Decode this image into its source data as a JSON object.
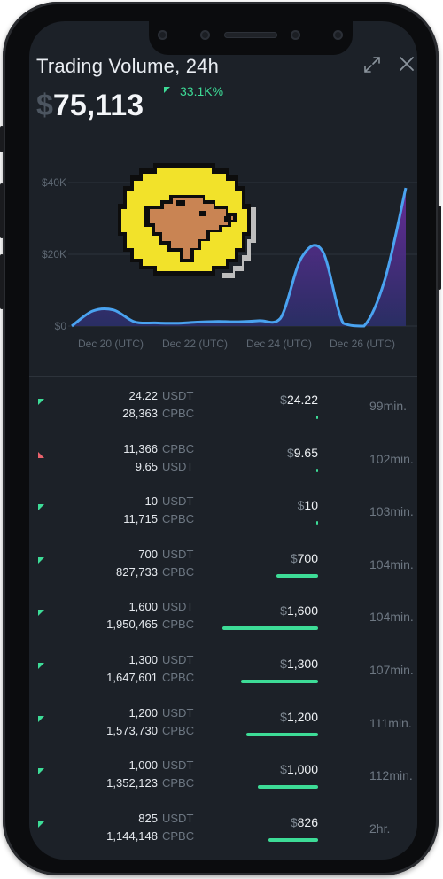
{
  "header": {
    "title": "Trading Volume, 24h",
    "currency_symbol": "$",
    "amount": "75,113",
    "change": "33.1K%"
  },
  "chart_data": {
    "type": "area",
    "y_ticks": [
      "$40K",
      "$20K",
      "$0"
    ],
    "x_ticks": [
      "Dec 20 (UTC)",
      "Dec 22 (UTC)",
      "Dec 24 (UTC)",
      "Dec 26 (UTC)"
    ],
    "ylim": [
      0,
      40000
    ],
    "series": [
      {
        "values": [
          0,
          4200,
          4500,
          1200,
          900,
          800,
          1100,
          1300,
          1200,
          1500,
          2200,
          19000,
          21000,
          800,
          0,
          13000,
          38500
        ]
      }
    ],
    "line_color": "#4aa3f0",
    "fill_colors": [
      "#6a2c9c",
      "#3a2f7a"
    ]
  },
  "colors": {
    "up": "#3ddc97",
    "down": "#e8626c"
  },
  "trades": [
    {
      "dir": "up",
      "top_value": "24.22",
      "top_unit": "USDT",
      "bottom_value": "28,363",
      "bottom_unit": "CPBC",
      "usd": "24.22",
      "bar": 0.006,
      "time": "99min."
    },
    {
      "dir": "down",
      "top_value": "11,366",
      "top_unit": "CPBC",
      "bottom_value": "9.65",
      "bottom_unit": "USDT",
      "usd": "9.65",
      "bar": 0.004,
      "time": "102min."
    },
    {
      "dir": "up",
      "top_value": "10",
      "top_unit": "USDT",
      "bottom_value": "11,715",
      "bottom_unit": "CPBC",
      "usd": "10",
      "bar": 0.004,
      "time": "103min."
    },
    {
      "dir": "up",
      "top_value": "700",
      "top_unit": "USDT",
      "bottom_value": "827,733",
      "bottom_unit": "CPBC",
      "usd": "700",
      "bar": 0.437,
      "time": "104min."
    },
    {
      "dir": "up",
      "top_value": "1,600",
      "top_unit": "USDT",
      "bottom_value": "1,950,465",
      "bottom_unit": "CPBC",
      "usd": "1,600",
      "bar": 1.0,
      "time": "104min."
    },
    {
      "dir": "up",
      "top_value": "1,300",
      "top_unit": "USDT",
      "bottom_value": "1,647,601",
      "bottom_unit": "CPBC",
      "usd": "1,300",
      "bar": 0.81,
      "time": "107min."
    },
    {
      "dir": "up",
      "top_value": "1,200",
      "top_unit": "USDT",
      "bottom_value": "1,573,730",
      "bottom_unit": "CPBC",
      "usd": "1,200",
      "bar": 0.75,
      "time": "111min."
    },
    {
      "dir": "up",
      "top_value": "1,000",
      "top_unit": "USDT",
      "bottom_value": "1,352,123",
      "bottom_unit": "CPBC",
      "usd": "1,000",
      "bar": 0.63,
      "time": "112min."
    },
    {
      "dir": "up",
      "top_value": "825",
      "top_unit": "USDT",
      "bottom_value": "1,144,148",
      "bottom_unit": "CPBC",
      "usd": "826",
      "bar": 0.52,
      "time": "2hr."
    }
  ]
}
